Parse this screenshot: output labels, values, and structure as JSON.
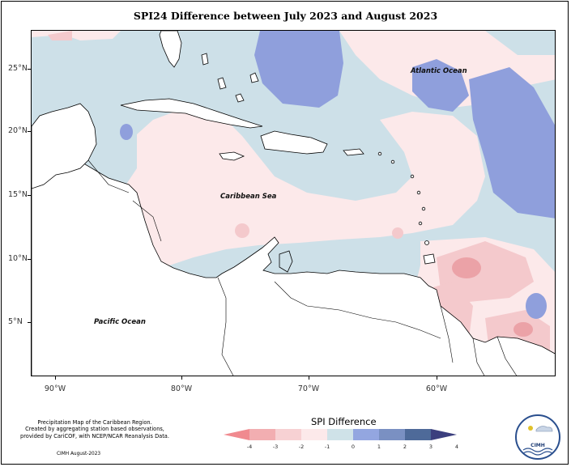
{
  "title": "SPI24 Difference between July 2023 and August 2023",
  "latitude_labels": [
    "25°N",
    "20°N",
    "15°N",
    "10°N",
    "5°N"
  ],
  "longitude_labels": [
    "90°W",
    "80°W",
    "70°W",
    "60°W"
  ],
  "map_labels": {
    "atlantic": "Atlantic Ocean",
    "caribbean": "Caribbean Sea",
    "pacific": "Pacific Ocean"
  },
  "footnote": {
    "line1": "Precipitation Map of the Caribbean Region.",
    "line2": "Created by aggregating station based observations,",
    "line3": "provided by CariCOF, with NCEP/NCAR Reanalysis Data.",
    "credit": "CIMH August-2023"
  },
  "colorbar": {
    "title": "SPI Difference",
    "ticks": [
      "-4",
      "-3",
      "-2",
      "-1",
      "0",
      "1",
      "2",
      "3",
      "4"
    ],
    "colors": [
      "#f08a8f",
      "#f2aeb1",
      "#f7d1d3",
      "#fce9ea",
      "#cfe2e8",
      "#93a6e0",
      "#7a90c2",
      "#4e6a99",
      "#3b3f7e"
    ]
  },
  "legend_colors": {
    "neutral": "#cde0e8",
    "slight_negative": "#fce9ea",
    "moderate_negative": "#f4c9cc",
    "strong_negative": "#eba2a7",
    "positive": "#8f9fdc"
  },
  "logo": {
    "name": "CIMH"
  }
}
